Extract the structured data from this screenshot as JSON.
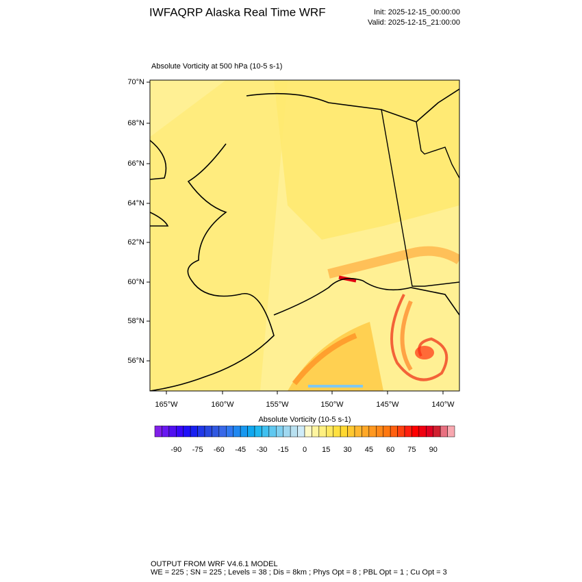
{
  "header": {
    "title": "IWFAQRP Alaska Real Time WRF",
    "init": "Init: 2025-12-15_00:00:00",
    "valid": "Valid: 2025-12-15_21:00:00"
  },
  "map": {
    "subtitle": "Absolute Vorticity at 500 hPa   (10-5 s-1)",
    "lat_labels": [
      "70°N",
      "68°N",
      "66°N",
      "64°N",
      "62°N",
      "60°N",
      "58°N",
      "56°N"
    ],
    "lon_labels": [
      "165°W",
      "160°W",
      "155°W",
      "150°W",
      "145°W",
      "140°W"
    ]
  },
  "colorbar": {
    "title": "Absolute Vorticity  (10-5 s-1)",
    "lim": [
      -105,
      105
    ],
    "ticks": [
      -90,
      -75,
      -60,
      -45,
      -30,
      -15,
      0,
      15,
      30,
      45,
      60,
      75,
      90
    ],
    "colors": [
      "#8020e8",
      "#6818f0",
      "#5010f0",
      "#3808f8",
      "#2010f8",
      "#1820f0",
      "#2038e8",
      "#2848e0",
      "#3058e0",
      "#3868e8",
      "#3078f0",
      "#2088f0",
      "#1898f0",
      "#10a8f0",
      "#20b8f0",
      "#40c0f0",
      "#60c8f0",
      "#80d0f0",
      "#a0d8f0",
      "#b8e0f0",
      "#d0ecf8",
      "#fffac8",
      "#fff5a0",
      "#fff080",
      "#ffe860",
      "#ffe040",
      "#ffd830",
      "#ffc830",
      "#ffb830",
      "#ffa828",
      "#ff9820",
      "#ff8818",
      "#ff7810",
      "#ff6010",
      "#ff4010",
      "#ff2010",
      "#ff0000",
      "#f00010",
      "#e00020",
      "#d02030",
      "#e87080",
      "#f8a8b0"
    ]
  },
  "footer": {
    "line1": "OUTPUT FROM WRF V4.6.1 MODEL",
    "line2": "WE = 225 ; SN = 225 ; Levels = 38 ; Dis = 8km ; Phys Opt = 8 ; PBL Opt = 1 ; Cu Opt = 3"
  }
}
